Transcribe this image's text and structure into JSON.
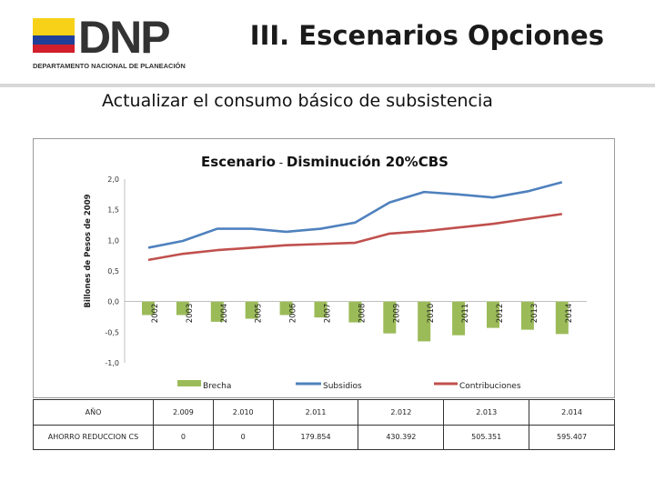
{
  "header": {
    "logo_text": "DNP",
    "logo_subtitle": "DEPARTAMENTO NACIONAL DE PLANEACIÓN",
    "title": "III. Escenarios Opciones"
  },
  "subtitle": "Actualizar el consumo básico de subsistencia",
  "colors": {
    "brecha": "#9bbb59",
    "subsidios": "#4f81bd",
    "contribuciones": "#c0504d"
  },
  "chart_data": {
    "type": "bar",
    "title": "Escenario - Disminución 20%CBS",
    "title_parts": [
      "Escenario",
      " - ",
      "Disminución",
      " 20%CBS"
    ],
    "xlabel": "",
    "ylabel": "Billones de Pesos de 2009",
    "ylim": [
      -1.0,
      2.0
    ],
    "yticks": [
      "2,0",
      "1,5",
      "1,0",
      "0,5",
      "0,0",
      "-0,5",
      "-1,0"
    ],
    "ytick_values": [
      2.0,
      1.5,
      1.0,
      0.5,
      0.0,
      -0.5,
      -1.0
    ],
    "categories": [
      "2002",
      "2003",
      "2004",
      "2005",
      "2006",
      "2007",
      "2008",
      "2009",
      "2010",
      "2011",
      "2012",
      "2013",
      "2014"
    ],
    "series": [
      {
        "name": "Brecha",
        "type": "bar",
        "values": [
          -0.22,
          -0.22,
          -0.33,
          -0.28,
          -0.22,
          -0.26,
          -0.34,
          -0.52,
          -0.65,
          -0.55,
          -0.43,
          -0.46,
          -0.53
        ]
      },
      {
        "name": "Subsidios",
        "type": "line",
        "values": [
          0.88,
          0.99,
          1.19,
          1.19,
          1.14,
          1.19,
          1.29,
          1.62,
          1.79,
          1.75,
          1.7,
          1.8,
          1.95
        ]
      },
      {
        "name": "Contribuciones",
        "type": "line",
        "values": [
          0.68,
          0.78,
          0.84,
          0.88,
          0.92,
          0.94,
          0.96,
          1.11,
          1.15,
          1.21,
          1.27,
          1.35,
          1.43
        ]
      }
    ],
    "legend": [
      "Brecha",
      "Subsidios",
      "Contribuciones"
    ],
    "legend_position": "bottom"
  },
  "table": {
    "header": [
      "AÑO",
      "2.009",
      "2.010",
      "2.011",
      "2.012",
      "2.013",
      "2.014"
    ],
    "rows": [
      [
        "AHORRO REDUCCION CS",
        "0",
        "0",
        "179.854",
        "430.392",
        "505.351",
        "595.407"
      ]
    ]
  }
}
